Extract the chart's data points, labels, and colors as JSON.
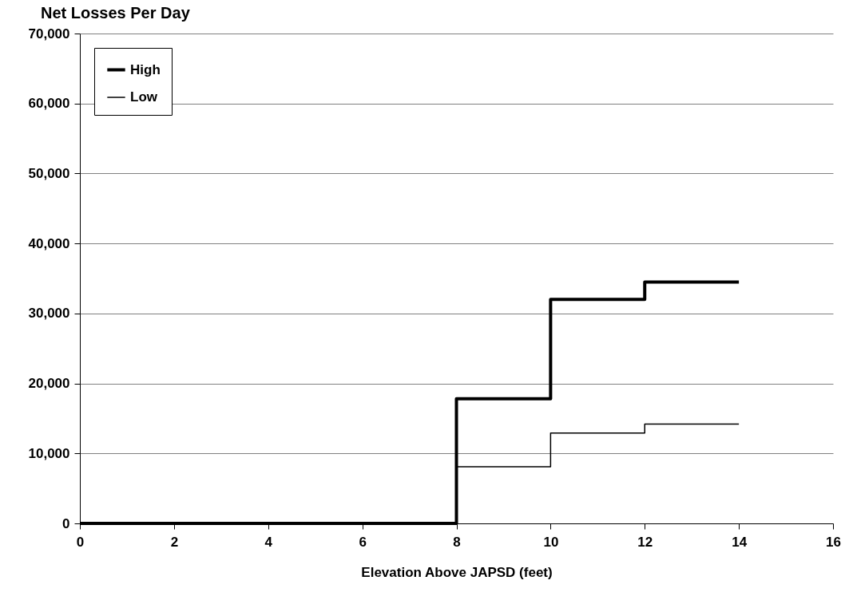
{
  "chart_data": {
    "type": "step",
    "title": "Net Losses Per Day",
    "xlabel": "Elevation Above JAPSD (feet)",
    "xlim": [
      0,
      16
    ],
    "xticks": [
      0,
      2,
      4,
      6,
      8,
      10,
      12,
      14,
      16
    ],
    "ylim": [
      0,
      70000
    ],
    "yticks": [
      0,
      {
        "value": 10000,
        "label": "10,000"
      },
      {
        "value": 20000,
        "label": "20,000"
      },
      {
        "value": 30000,
        "label": "30,000"
      },
      {
        "value": 40000,
        "label": "40,000"
      },
      {
        "value": 50000,
        "label": "50,000"
      },
      {
        "value": 60000,
        "label": "60,000"
      },
      {
        "value": 70000,
        "label": "70,000"
      }
    ],
    "grid": "y",
    "legend": "top left",
    "marker": "none",
    "line_style": "solid",
    "series": [
      {
        "name": "High",
        "color": "#000000",
        "x": [
          0,
          8,
          10,
          12,
          14
        ],
        "values": [
          0,
          17800,
          32000,
          34500,
          34500
        ]
      },
      {
        "name": "Low",
        "color": "#000000",
        "x": [
          0,
          8,
          10,
          12,
          14
        ],
        "values": [
          0,
          8100,
          12900,
          14200,
          14200
        ]
      }
    ]
  }
}
